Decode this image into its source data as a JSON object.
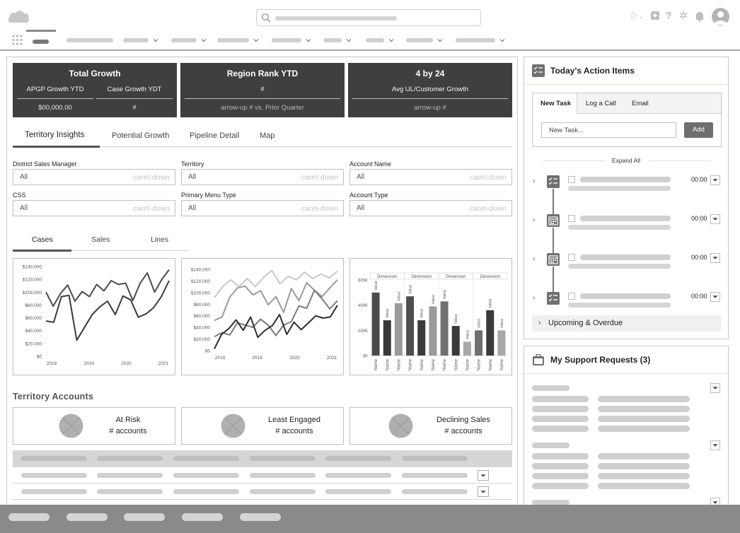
{
  "header": {
    "icons": [
      "salesforce-cloud-logo",
      "search-icon",
      "star-icon",
      "plus-icon",
      "help-icon",
      "gear-icon",
      "bell-icon",
      "avatar-icon",
      "app-launcher-icon"
    ]
  },
  "kpis": {
    "total_growth": {
      "title": "Total Growth",
      "sub1": "APGP Growth YTD",
      "sub2": "Case Growth YDT",
      "val1": "$00,000.00",
      "val2": "#"
    },
    "region_rank": {
      "title": "Region Rank YTD",
      "sub": "#",
      "val": "arrow-up  # vs. Prior Quarter"
    },
    "four_by_24": {
      "title": "4 by 24",
      "sub": "Avg UL/Customer Growth",
      "val": "arrow-up  #"
    }
  },
  "main_tabs": [
    "Territory Insights",
    "Potential Growth",
    "Pipeline Detail",
    "Map"
  ],
  "filters": [
    {
      "label": "District Sales Manager",
      "value": "All",
      "caret": "caret-down"
    },
    {
      "label": "Territory",
      "value": "All",
      "caret": "caret-down"
    },
    {
      "label": "Account Name",
      "value": "All",
      "caret": "caret-down"
    },
    {
      "label": "CSS",
      "value": "All",
      "caret": "caret-down"
    },
    {
      "label": "Primary Menu Type",
      "value": "All",
      "caret": "caret-down"
    },
    {
      "label": "Account Type",
      "value": "All",
      "caret": "caret-down"
    }
  ],
  "chart_tabs": [
    "Cases",
    "Sales",
    "Lines"
  ],
  "chart_data": [
    {
      "type": "line",
      "y_ticks": [
        "$140,000",
        "$120,000",
        "$100,000",
        "$80,000",
        "$60,000",
        "$40,000",
        "$20,000",
        "$0"
      ],
      "x_ticks": [
        "2018",
        "2019",
        "2020",
        "2021"
      ],
      "ylim": [
        0,
        140000
      ],
      "series": [
        {
          "values": [
            100000,
            78000,
            98000,
            111000,
            86000,
            101000,
            93000,
            112000,
            102000,
            118000,
            112000,
            114000,
            87000,
            114000,
            130000,
            100000,
            120000,
            135000
          ]
        },
        {
          "values": [
            55000,
            53000,
            93000,
            95000,
            25000,
            45000,
            65000,
            77000,
            86000,
            65000,
            94000,
            88000,
            61000,
            66000,
            76000,
            93000,
            118000
          ]
        }
      ]
    },
    {
      "type": "line",
      "y_ticks": [
        "$140,000",
        "$120,000",
        "$100,000",
        "$80,000",
        "$60,000",
        "$40,000",
        "$20,000",
        "$0"
      ],
      "x_ticks": [
        "2018",
        "2019",
        "2020",
        "2021"
      ],
      "ylim": [
        0,
        140000
      ],
      "series": [
        {
          "values": [
            91000,
            110000,
            122000,
            110000,
            124000,
            110000,
            126000,
            138000,
            115000,
            128000,
            122000,
            135000,
            124000,
            132000,
            125000,
            137000
          ]
        },
        {
          "values": [
            52000,
            58000,
            92000,
            108000,
            111000,
            96000,
            103000,
            79000,
            93000,
            66000,
            107000,
            86000,
            117000,
            104000,
            93000,
            108000,
            122000
          ]
        },
        {
          "values": [
            24000,
            31000,
            27000,
            48000,
            44000,
            40000,
            54000,
            44000,
            26000,
            44000,
            50000,
            77000,
            73000,
            104000,
            89000,
            72000,
            86000
          ]
        },
        {
          "values": [
            3000,
            28000,
            38000,
            53000,
            35000,
            58000,
            23000,
            35000,
            43000,
            62000,
            28000,
            49000,
            36000,
            48000,
            60000,
            56000,
            58000,
            78000
          ]
        }
      ]
    },
    {
      "type": "bar",
      "group_labels": [
        "Dimension",
        "Dimension",
        "Dimension",
        "Dimension"
      ],
      "y_ticks": [
        "600K",
        "400K",
        "200K",
        "0K"
      ],
      "ylim": [
        0,
        600000
      ],
      "bar_labels": [
        "Value",
        "Value",
        "Value",
        "Value",
        "Value",
        "Value",
        "Value",
        "Value",
        "Value",
        "Value",
        "Value",
        "Value"
      ],
      "categories": [
        "Name",
        "Name",
        "Name",
        "Name",
        "Name",
        "Name",
        "Name",
        "Name",
        "Name",
        "Name",
        "Name",
        "Name"
      ],
      "values": [
        500000,
        280000,
        415000,
        470000,
        280000,
        390000,
        430000,
        235000,
        110000,
        200000,
        360000,
        200000
      ],
      "shades": [
        "#4a4a4a",
        "#3a3a3a",
        "#9a9a9a",
        "#4e4e4e",
        "#3a3a3a",
        "#9a9a9a",
        "#707070",
        "#3a3a3a",
        "#a8a8a8",
        "#6e6e6e",
        "#3a3a3a",
        "#a8a8a8"
      ]
    }
  ],
  "territory_accounts": {
    "title": "Territory Accounts",
    "cards": [
      {
        "line1": "At Risk",
        "line2": "# accounts"
      },
      {
        "line1": "Least Engaged",
        "line2": "# accounts"
      },
      {
        "line1": "Declining Sales",
        "line2": "# accounts"
      }
    ]
  },
  "action_items": {
    "title": "Today's Action Items",
    "tabs": [
      "New Task",
      "Log a Call",
      "Email"
    ],
    "input_placeholder": "New Task...",
    "add_label": "Add",
    "expand_all": "Expand All",
    "items": [
      {
        "icon": "task-icon",
        "time": "00:00"
      },
      {
        "icon": "calendar-icon",
        "time": "00:00"
      },
      {
        "icon": "calendar-icon",
        "time": "00:00"
      },
      {
        "icon": "task-icon",
        "time": "00:00"
      }
    ],
    "upcoming": "Upcoming & Overdue"
  },
  "support_requests": {
    "title": "My Support Requests (3)"
  },
  "colors": {
    "kpi_bg": "#3f3f3f",
    "footer_bg": "#8a8a8a",
    "placeholder_gray": "#cfcfcf"
  }
}
